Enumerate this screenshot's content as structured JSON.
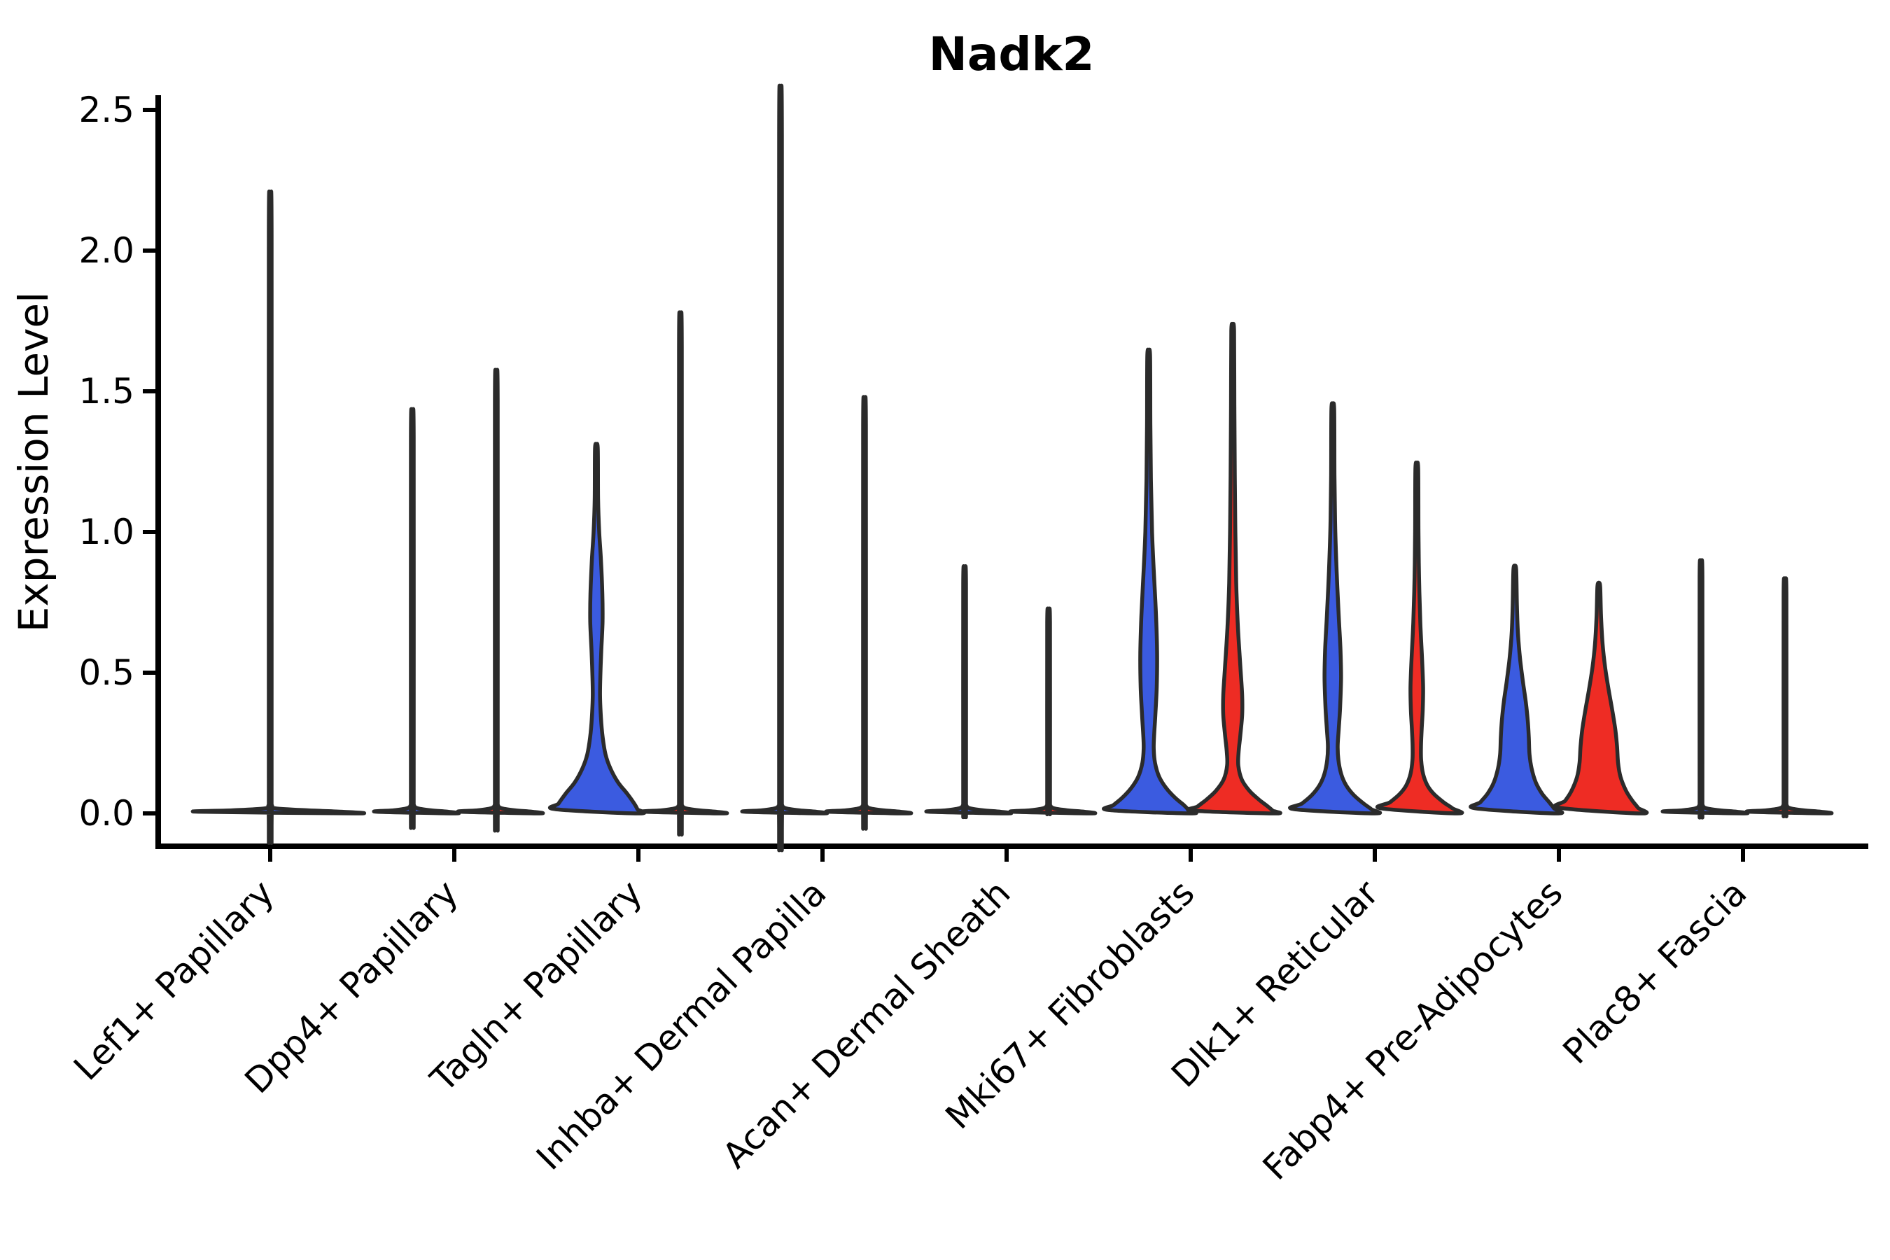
{
  "title": "Nadk2",
  "chart_data": {
    "type": "violin",
    "title": "Nadk2",
    "ylabel": "Expression Level",
    "xlabel": "",
    "ylim": [
      -0.12,
      2.6
    ],
    "grid": "off",
    "legend": "none",
    "spines": [
      "left",
      "bottom"
    ],
    "yticks": [
      {
        "value": 0.0,
        "label": "0.0"
      },
      {
        "value": 0.5,
        "label": "0.5"
      },
      {
        "value": 1.0,
        "label": "1.0"
      },
      {
        "value": 1.5,
        "label": "1.5"
      },
      {
        "value": 2.0,
        "label": "2.0"
      },
      {
        "value": 2.5,
        "label": "2.5"
      }
    ],
    "groups": [
      {
        "name": "group-1",
        "color": "#3B5BE0"
      },
      {
        "name": "group-2",
        "color": "#EE2C24"
      }
    ],
    "outline_color": "#2B2B2B",
    "categories": [
      {
        "label": "Lef1+ Papillary",
        "tick_x": 386,
        "violins": [
          {
            "group": "group-1",
            "center_x": 386,
            "max_expression": 2.07,
            "shape": "flat",
            "half_width": 121
          }
        ]
      },
      {
        "label": "Dpp4+ Papillary",
        "tick_x": 649,
        "violins": [
          {
            "group": "group-1",
            "center_x": 589,
            "max_expression": 1.35,
            "shape": "flat",
            "half_width": 60
          },
          {
            "group": "group-2",
            "center_x": 709,
            "max_expression": 1.48,
            "shape": "flat",
            "half_width": 60
          }
        ]
      },
      {
        "label": "Tagln+ Papillary",
        "tick_x": 912,
        "violins": [
          {
            "group": "group-1",
            "center_x": 852,
            "max_expression": 1.31,
            "shape": "body",
            "half_width": 60,
            "profile": [
              [
                1.31,
                0
              ],
              [
                1.295,
                2.0
              ],
              [
                1.12,
                2.4
              ],
              [
                1.0,
                4
              ],
              [
                0.9,
                6.5
              ],
              [
                0.78,
                8.5
              ],
              [
                0.68,
                8.8
              ],
              [
                0.58,
                7
              ],
              [
                0.5,
                5.8
              ],
              [
                0.42,
                5.2
              ],
              [
                0.34,
                6.5
              ],
              [
                0.27,
                9
              ],
              [
                0.21,
                13
              ],
              [
                0.16,
                20
              ],
              [
                0.11,
                31
              ],
              [
                0.07,
                44
              ],
              [
                0.035,
                54
              ],
              [
                0.015,
                58.5
              ],
              [
                0,
                60
              ]
            ]
          },
          {
            "group": "group-2",
            "center_x": 972,
            "max_expression": 1.67,
            "shape": "flat",
            "half_width": 60
          }
        ]
      },
      {
        "label": "Inhba+ Dermal Papilla",
        "tick_x": 1175,
        "violins": [
          {
            "group": "group-1",
            "center_x": 1115,
            "max_expression": 2.42,
            "shape": "flat",
            "half_width": 60
          },
          {
            "group": "group-2",
            "center_x": 1235,
            "max_expression": 1.39,
            "shape": "flat",
            "half_width": 60
          }
        ]
      },
      {
        "label": "Acan+ Dermal Sheath",
        "tick_x": 1438,
        "violins": [
          {
            "group": "group-1",
            "center_x": 1378,
            "max_expression": 0.83,
            "shape": "flat",
            "half_width": 60
          },
          {
            "group": "group-2",
            "center_x": 1498,
            "max_expression": 0.69,
            "shape": "flat",
            "half_width": 60
          }
        ]
      },
      {
        "label": "Mki67+ Fibroblasts",
        "tick_x": 1701,
        "violins": [
          {
            "group": "group-1",
            "center_x": 1641,
            "max_expression": 1.64,
            "shape": "body",
            "half_width": 60,
            "profile": [
              [
                1.64,
                0
              ],
              [
                1.625,
                2.0
              ],
              [
                1.38,
                2.4
              ],
              [
                1.18,
                3.2
              ],
              [
                1.0,
                4.8
              ],
              [
                0.85,
                7.5
              ],
              [
                0.7,
                10.5
              ],
              [
                0.57,
                12
              ],
              [
                0.45,
                11.5
              ],
              [
                0.35,
                9.5
              ],
              [
                0.28,
                7.8
              ],
              [
                0.23,
                7.2
              ],
              [
                0.18,
                9
              ],
              [
                0.13,
                15
              ],
              [
                0.09,
                25
              ],
              [
                0.055,
                38
              ],
              [
                0.03,
                50
              ],
              [
                0.012,
                57
              ],
              [
                0,
                60
              ]
            ]
          },
          {
            "group": "group-2",
            "center_x": 1761,
            "max_expression": 1.73,
            "shape": "body",
            "half_width": 60,
            "profile": [
              [
                1.73,
                0
              ],
              [
                1.715,
                2.0
              ],
              [
                1.45,
                2.4
              ],
              [
                1.2,
                3
              ],
              [
                1.0,
                3.8
              ],
              [
                0.82,
                5
              ],
              [
                0.66,
                7.5
              ],
              [
                0.52,
                11
              ],
              [
                0.42,
                13.5
              ],
              [
                0.35,
                13.5
              ],
              [
                0.28,
                11
              ],
              [
                0.22,
                8.5
              ],
              [
                0.17,
                8
              ],
              [
                0.12,
                13
              ],
              [
                0.08,
                24
              ],
              [
                0.05,
                37
              ],
              [
                0.025,
                50
              ],
              [
                0.01,
                57
              ],
              [
                0,
                60
              ]
            ]
          }
        ]
      },
      {
        "label": "Dlk1+ Reticular",
        "tick_x": 1964,
        "violins": [
          {
            "group": "group-1",
            "center_x": 1904,
            "max_expression": 1.45,
            "shape": "body",
            "half_width": 60,
            "profile": [
              [
                1.45,
                0
              ],
              [
                1.435,
                2.0
              ],
              [
                1.2,
                2.4
              ],
              [
                1.02,
                3.4
              ],
              [
                0.86,
                5.5
              ],
              [
                0.7,
                8.5
              ],
              [
                0.58,
                11
              ],
              [
                0.48,
                11.8
              ],
              [
                0.38,
                10.5
              ],
              [
                0.3,
                8.5
              ],
              [
                0.24,
                7
              ],
              [
                0.19,
                8
              ],
              [
                0.14,
                12
              ],
              [
                0.1,
                19
              ],
              [
                0.065,
                30
              ],
              [
                0.035,
                44
              ],
              [
                0.015,
                55
              ],
              [
                0,
                60
              ]
            ]
          },
          {
            "group": "group-2",
            "center_x": 2024,
            "max_expression": 1.24,
            "shape": "body",
            "half_width": 58,
            "profile": [
              [
                1.24,
                0
              ],
              [
                1.225,
                2.0
              ],
              [
                1.0,
                2.4
              ],
              [
                0.84,
                3.2
              ],
              [
                0.68,
                5
              ],
              [
                0.55,
                7.5
              ],
              [
                0.45,
                9
              ],
              [
                0.37,
                8.5
              ],
              [
                0.3,
                7
              ],
              [
                0.24,
                6
              ],
              [
                0.19,
                6.2
              ],
              [
                0.14,
                9
              ],
              [
                0.1,
                15
              ],
              [
                0.07,
                24
              ],
              [
                0.04,
                38
              ],
              [
                0.018,
                51
              ],
              [
                0,
                58
              ]
            ]
          }
        ]
      },
      {
        "label": "Fabp4+ Pre-Adipocytes",
        "tick_x": 2227,
        "violins": [
          {
            "group": "group-1",
            "center_x": 2164,
            "max_expression": 0.88,
            "shape": "body",
            "half_width": 60,
            "profile": [
              [
                0.88,
                0
              ],
              [
                0.865,
                2.0
              ],
              [
                0.74,
                3
              ],
              [
                0.64,
                4.5
              ],
              [
                0.55,
                7.5
              ],
              [
                0.47,
                11.5
              ],
              [
                0.4,
                15.5
              ],
              [
                0.33,
                18.5
              ],
              [
                0.27,
                20
              ],
              [
                0.21,
                21
              ],
              [
                0.16,
                24
              ],
              [
                0.11,
                30
              ],
              [
                0.07,
                39
              ],
              [
                0.04,
                49
              ],
              [
                0.018,
                56
              ],
              [
                0,
                60
              ]
            ]
          },
          {
            "group": "group-2",
            "center_x": 2284,
            "max_expression": 0.82,
            "shape": "body",
            "half_width": 61,
            "profile": [
              [
                0.82,
                0
              ],
              [
                0.805,
                2.0
              ],
              [
                0.7,
                3.2
              ],
              [
                0.6,
                5.5
              ],
              [
                0.52,
                9
              ],
              [
                0.44,
                14
              ],
              [
                0.37,
                19
              ],
              [
                0.3,
                23.5
              ],
              [
                0.24,
                26
              ],
              [
                0.18,
                27.5
              ],
              [
                0.13,
                31
              ],
              [
                0.08,
                39
              ],
              [
                0.045,
                48
              ],
              [
                0.02,
                56
              ],
              [
                0,
                61
              ]
            ]
          }
        ]
      },
      {
        "label": "Plac8+ Fascia",
        "tick_x": 2490,
        "violins": [
          {
            "group": "group-1",
            "center_x": 2430,
            "max_expression": 0.85,
            "shape": "flat",
            "half_width": 60
          },
          {
            "group": "group-2",
            "center_x": 2550,
            "max_expression": 0.79,
            "shape": "flat",
            "half_width": 60
          }
        ]
      }
    ]
  }
}
